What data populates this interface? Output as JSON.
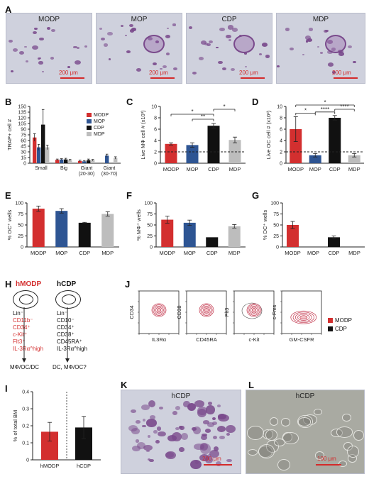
{
  "colors": {
    "MODP": "#d32f2f",
    "MOP": "#2e5593",
    "CDP": "#111111",
    "MDP": "#bdbdbd",
    "photo_bg": "#cfd1dd",
    "cell": "#7a4a8c"
  },
  "panels": {
    "A": {
      "label": "A",
      "images": [
        {
          "title": "MODP",
          "scale": "200 μm"
        },
        {
          "title": "MOP",
          "scale": "200 μm"
        },
        {
          "title": "CDP",
          "scale": "200 μm"
        },
        {
          "title": "MDP",
          "scale": "200 μm"
        }
      ]
    },
    "H": {
      "label": "H",
      "left": {
        "title": "hMODP",
        "markers": [
          "Lin⁻",
          "CD11b⁻",
          "CD34⁺",
          "c-Kit⁺",
          "Flt3⁺",
          "IL-3Rα^high"
        ],
        "outcome": "MΦ/OC/DC"
      },
      "right": {
        "title": "hCDP",
        "markers": [
          "Lin⁻",
          "CD10⁻",
          "CD34⁺",
          "CD38⁺",
          "CD45RA⁺",
          "IL-3Rα^high"
        ],
        "outcome": "DC, MΦ/OC?"
      }
    },
    "J": {
      "label": "J",
      "plots": [
        {
          "y": "CD34",
          "x": "IL3Rα"
        },
        {
          "y": "CD38",
          "x": "CD45RA"
        },
        {
          "y": "Flt3",
          "x": "c-Kit"
        },
        {
          "y": "c-Fms",
          "x": "GM-CSFR"
        }
      ],
      "legend": [
        "MODP",
        "CDP"
      ]
    },
    "K": {
      "label": "K",
      "title": "hCDP",
      "scale": "200 μm"
    },
    "L": {
      "label": "L",
      "title": "hCDP",
      "scale": "100 μm"
    }
  },
  "chart_data": [
    {
      "id": "B",
      "type": "bar",
      "ylabel": "TRAP+ cell #",
      "ylim": [
        0,
        150
      ],
      "yticks": [
        0,
        15,
        30,
        45,
        60,
        75,
        90,
        105,
        120,
        135,
        150
      ],
      "categories": [
        "Small",
        "Big",
        "Giant (20-30)",
        "Giant (30-70)"
      ],
      "legend": "top-right",
      "series": [
        {
          "name": "MODP",
          "values": [
            68,
            9,
            6,
            0
          ],
          "errors": [
            10,
            2,
            2,
            0
          ]
        },
        {
          "name": "MOP",
          "values": [
            42,
            10,
            5,
            20
          ],
          "errors": [
            8,
            2,
            2,
            4
          ]
        },
        {
          "name": "CDP",
          "values": [
            102,
            10,
            8,
            0
          ],
          "errors": [
            40,
            3,
            3,
            0
          ]
        },
        {
          "name": "MDP",
          "values": [
            42,
            8,
            8,
            14
          ],
          "errors": [
            6,
            2,
            2,
            3
          ]
        }
      ]
    },
    {
      "id": "C",
      "type": "bar",
      "ylabel": "Live MΦ cell # (x10³)",
      "ylim": [
        0,
        10
      ],
      "yticks": [
        0,
        2,
        4,
        6,
        8,
        10
      ],
      "categories": [
        "MODP",
        "MOP",
        "CDP",
        "MDP"
      ],
      "values": [
        3.4,
        3.2,
        6.6,
        4.1
      ],
      "errors": [
        0.2,
        0.4,
        0.4,
        0.5
      ],
      "reference_line": 2,
      "significance": [
        {
          "pair": [
            1,
            2
          ],
          "label": "**"
        },
        {
          "pair": [
            0,
            2
          ],
          "label": "*"
        },
        {
          "pair": [
            2,
            3
          ],
          "label": "*"
        }
      ]
    },
    {
      "id": "D",
      "type": "bar",
      "ylabel": "Live OC cell # (x10³)",
      "ylim": [
        0,
        10
      ],
      "yticks": [
        0,
        2,
        4,
        6,
        8,
        10
      ],
      "categories": [
        "MODP",
        "MOP",
        "CDP",
        "MDP"
      ],
      "values": [
        6.0,
        1.4,
        8.0,
        1.4
      ],
      "errors": [
        2.2,
        0.3,
        0.4,
        0.3
      ],
      "reference_line": 2,
      "significance": [
        {
          "pair": [
            0,
            1
          ],
          "label": "*"
        },
        {
          "pair": [
            1,
            2
          ],
          "label": "****"
        },
        {
          "pair": [
            2,
            3
          ],
          "label": "****"
        },
        {
          "pair": [
            0,
            3
          ],
          "label": "*"
        }
      ]
    },
    {
      "id": "E",
      "type": "bar",
      "ylabel": "% OC⁺ wells",
      "ylim": [
        0,
        100
      ],
      "yticks": [
        0,
        25,
        50,
        75,
        100
      ],
      "categories": [
        "MODP",
        "MOP",
        "CDP",
        "MDP"
      ],
      "values": [
        87,
        82,
        55,
        75
      ],
      "errors": [
        6,
        5,
        1,
        5
      ]
    },
    {
      "id": "F",
      "type": "bar",
      "ylabel": "% MΦ⁺ wells",
      "ylim": [
        0,
        100
      ],
      "yticks": [
        0,
        25,
        50,
        75,
        100
      ],
      "categories": [
        "MODP",
        "MOP",
        "CDP",
        "MDP"
      ],
      "values": [
        62,
        55,
        22,
        47
      ],
      "errors": [
        8,
        6,
        0,
        4
      ]
    },
    {
      "id": "G",
      "type": "bar",
      "ylabel": "% DC⁺ wells",
      "ylim": [
        0,
        100
      ],
      "yticks": [
        0,
        25,
        50,
        75,
        100
      ],
      "categories": [
        "MODP",
        "MOP",
        "CDP",
        "MDP"
      ],
      "values": [
        50,
        0,
        22,
        0
      ],
      "errors": [
        8,
        0,
        3,
        0
      ]
    },
    {
      "id": "I",
      "type": "bar",
      "ylabel": "% of total BM",
      "ylim": [
        0,
        0.4
      ],
      "yticks": [
        0.0,
        0.1,
        0.2,
        0.3,
        0.4
      ],
      "categories": [
        "hMODP",
        "hCDP"
      ],
      "values": [
        0.165,
        0.19
      ],
      "errors": [
        0.055,
        0.065
      ]
    }
  ]
}
